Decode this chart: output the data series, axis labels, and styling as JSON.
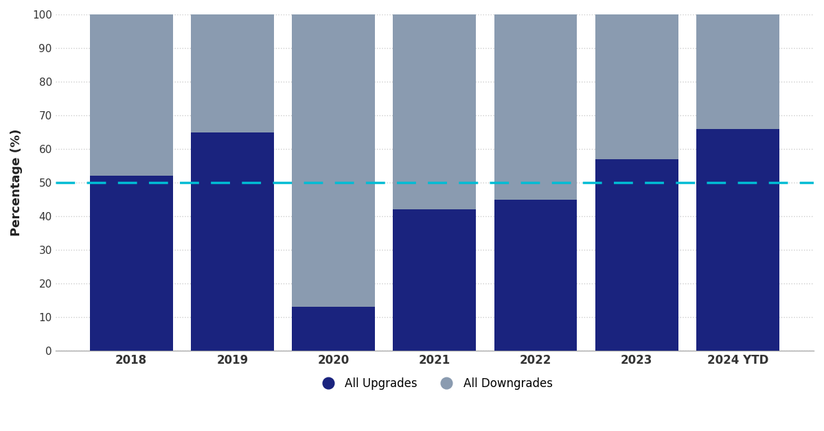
{
  "categories": [
    "2018",
    "2019",
    "2020",
    "2021",
    "2022",
    "2023",
    "2024 YTD"
  ],
  "upgrades": [
    52,
    65,
    13,
    42,
    45,
    57,
    66
  ],
  "downgrades": [
    48,
    35,
    87,
    58,
    55,
    43,
    34
  ],
  "upgrade_color": "#1a237e",
  "downgrade_color": "#8a9bb0",
  "ylabel": "Percentage (%)",
  "yticks": [
    0,
    10,
    20,
    30,
    40,
    50,
    60,
    70,
    80,
    90,
    100
  ],
  "ylim": [
    0,
    100
  ],
  "dashed_line_y": 50,
  "dashed_line_color": "#00bcd4",
  "legend_upgrade": "All Upgrades",
  "legend_downgrade": "All Downgrades",
  "background_color": "#ffffff",
  "bar_width": 0.82,
  "grid_color": "#cccccc"
}
